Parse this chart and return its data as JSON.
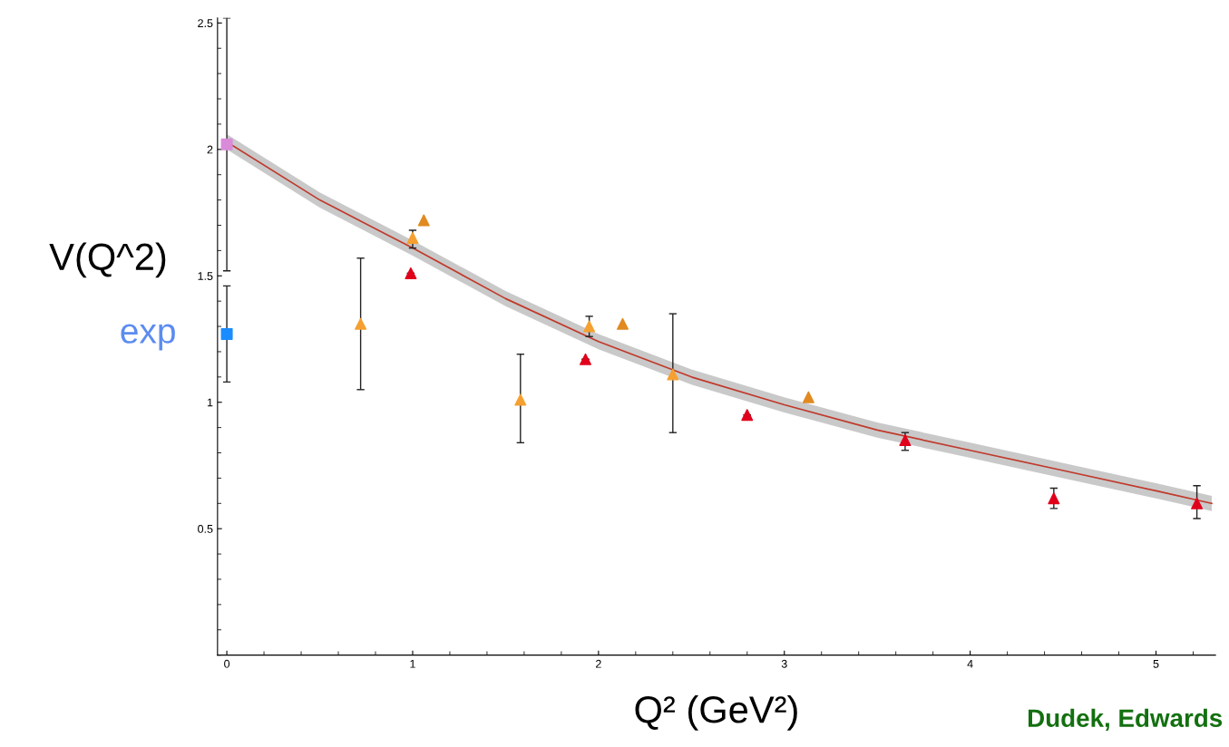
{
  "chart_data": {
    "type": "scatter",
    "xlabel": "Q² (GeV²)",
    "ylabel": "V(Q^2)",
    "xlim": [
      -0.05,
      5.32
    ],
    "ylim": [
      0,
      2.52
    ],
    "xticks": [
      0,
      1,
      2,
      3,
      4,
      5
    ],
    "yticks": [
      0.5,
      1,
      1.5,
      2,
      2.5
    ],
    "grid": false,
    "legend": false,
    "annotations": [
      {
        "text": "exp",
        "x": 0,
        "y": 1.27
      },
      "Dudek, Edwards"
    ],
    "series": [
      {
        "type": "line",
        "color": "#c0392b",
        "x": [
          0,
          0.5,
          1,
          1.5,
          2,
          2.5,
          3,
          3.5,
          4,
          4.5,
          5,
          5.3
        ],
        "values": [
          2.03,
          1.8,
          1.61,
          1.41,
          1.24,
          1.1,
          0.99,
          0.89,
          0.81,
          0.73,
          0.65,
          0.6
        ],
        "lower": [
          2.0,
          1.77,
          1.58,
          1.38,
          1.21,
          1.07,
          0.96,
          0.86,
          0.78,
          0.7,
          0.62,
          0.57
        ],
        "upper": [
          2.06,
          1.83,
          1.64,
          1.44,
          1.27,
          1.13,
          1.02,
          0.92,
          0.84,
          0.76,
          0.68,
          0.63
        ],
        "marker": "none"
      },
      {
        "color": "#d98ad9",
        "marker": "square",
        "x": [
          0
        ],
        "values": [
          2.02
        ],
        "errors": [
          0.5
        ]
      },
      {
        "color": "#1a8cff",
        "marker": "square",
        "x": [
          0
        ],
        "values": [
          1.27
        ],
        "errors": [
          [
            1.08,
            1.46
          ]
        ]
      },
      {
        "color": "#f5a030",
        "marker": "triangle",
        "x": [
          0.72,
          1.0,
          1.58,
          1.95,
          2.4
        ],
        "values": [
          1.31,
          1.65,
          1.01,
          1.3,
          1.11
        ],
        "errors": [
          [
            1.05,
            1.57
          ],
          [
            1.61,
            1.68
          ],
          [
            0.84,
            1.19
          ],
          [
            1.26,
            1.34
          ],
          [
            0.88,
            1.35
          ]
        ]
      },
      {
        "color": "#e08a20",
        "marker": "triangle",
        "x": [
          1.06,
          2.13,
          3.13
        ],
        "values": [
          1.72,
          1.31,
          1.02
        ]
      },
      {
        "color": "#e0001b",
        "marker": "triangle",
        "x": [
          0.99,
          1.93,
          2.8,
          3.65,
          4.45,
          5.22
        ],
        "values": [
          1.51,
          1.17,
          0.95,
          0.85,
          0.62,
          0.6
        ],
        "errors": [
          null,
          null,
          null,
          [
            0.81,
            0.88
          ],
          [
            0.58,
            0.66
          ],
          [
            0.54,
            0.67
          ]
        ]
      }
    ]
  }
}
